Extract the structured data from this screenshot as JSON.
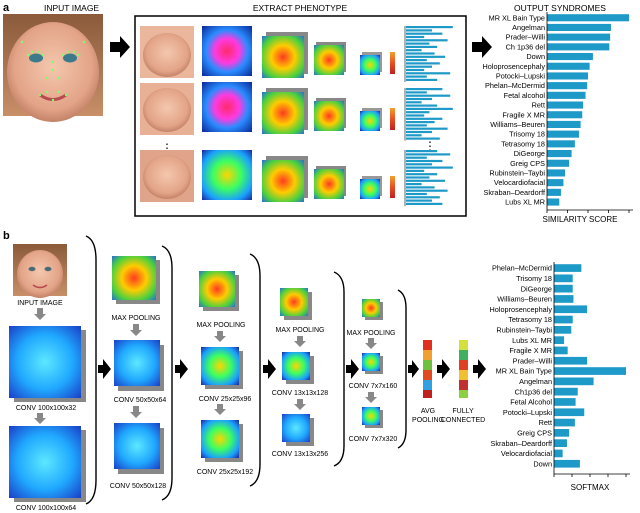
{
  "panel_a": {
    "letter": "a",
    "input_title": "INPUT IMAGE",
    "phenotype_title": "EXTRACT PHENOTYPE",
    "ellipsis": "⋮",
    "output_title": "OUTPUT SYNDROMES",
    "syndromes": [
      "MR XL Bain Type",
      "Angelman",
      "Prader–Willi",
      "Ch 1p36 del",
      "Down",
      "Holoprosencephaly",
      "Potocki–Lupski",
      "Phelan–McDermid",
      "Fetal alcohol",
      "Rett",
      "Fragile X MR",
      "Williams–Beuren",
      "Trisomy 18",
      "Tetrasomy 18",
      "DiGeorge",
      "Greig CPS",
      "Rubinstein–Taybi",
      "Velocardiofacial",
      "Skraban–Deardorff",
      "Lubs XL MR"
    ],
    "scores": [
      1.0,
      0.78,
      0.77,
      0.76,
      0.56,
      0.52,
      0.5,
      0.49,
      0.47,
      0.44,
      0.43,
      0.41,
      0.39,
      0.34,
      0.3,
      0.27,
      0.22,
      0.2,
      0.17,
      0.15
    ],
    "axis_label": "SIMILARITY SCORE",
    "bar_color": "#1e9ac8"
  },
  "panel_b": {
    "letter": "b",
    "input_label": "INPUT IMAGE",
    "layers": {
      "conv1": "CONV 100x100x32",
      "conv2": "CONV 100x100x64",
      "pool1": "MAX POOLING",
      "conv3": "CONV 50x50x64",
      "conv4": "CONV 50x50x128",
      "pool2": "MAX POOLING",
      "conv5": "CONV 25x25x96",
      "conv6": "CONV 25x25x192",
      "pool3": "MAX POOLING",
      "conv7": "CONV 13x13x128",
      "conv8": "CONV 13x13x256",
      "pool4": "MAX POOLING",
      "conv9": "CONV 7x7x160",
      "conv10": "CONV 7x7x320",
      "avg1": "AVG",
      "avg2": "POOLING",
      "fc1": "FULLY",
      "fc2": "CONNECTED"
    },
    "syndromes": [
      "Phelan–McDermid",
      "Trisomy 18",
      "DiGeorge",
      "Williams–Beuren",
      "Holoprosencephaly",
      "Tetrasomy 18",
      "Rubinstein–Taybi",
      "Lubs XL MR",
      "Fragile X MR",
      "Prader–Willi",
      "MR XL Bain Type",
      "Angelman",
      "Ch1p36 del",
      "Fetal Alcohol",
      "Potocki–Lupski",
      "Rett",
      "Greig CPS",
      "Skraban–Deardorff",
      "Velocardiofacial",
      "Down"
    ],
    "scores": [
      0.38,
      0.26,
      0.26,
      0.27,
      0.46,
      0.26,
      0.24,
      0.14,
      0.19,
      0.46,
      1.0,
      0.55,
      0.33,
      0.3,
      0.42,
      0.29,
      0.21,
      0.18,
      0.12,
      0.36
    ],
    "axis_label": "SOFTMAX",
    "bar_color": "#1e9ac8"
  }
}
